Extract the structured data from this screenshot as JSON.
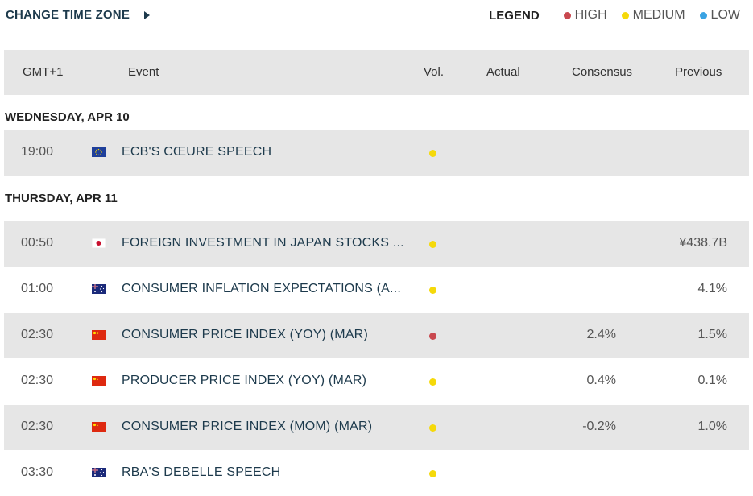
{
  "header": {
    "change_tz_label": "CHANGE TIME ZONE",
    "legend_title": "LEGEND",
    "legend": [
      {
        "label": "HIGH",
        "color": "#c9484f"
      },
      {
        "label": "MEDIUM",
        "color": "#f5d90a"
      },
      {
        "label": "LOW",
        "color": "#3aa3e3"
      }
    ]
  },
  "table": {
    "columns": [
      "GMT+1",
      "Event",
      "Vol.",
      "Actual",
      "Consensus",
      "Previous"
    ]
  },
  "days": [
    {
      "heading": "WEDNESDAY, APR 10",
      "events": [
        {
          "time": "19:00",
          "flag": "eu-flag-icon",
          "event": "ECB'S CŒURE SPEECH",
          "vol": "medium",
          "actual": "",
          "consensus": "",
          "previous": ""
        }
      ]
    },
    {
      "heading": "THURSDAY, APR 11",
      "events": [
        {
          "time": "00:50",
          "flag": "japan-flag-icon",
          "event": "FOREIGN INVESTMENT IN JAPAN STOCKS ...",
          "vol": "medium",
          "actual": "",
          "consensus": "",
          "previous": "¥438.7B"
        },
        {
          "time": "01:00",
          "flag": "australia-flag-icon",
          "event": "CONSUMER INFLATION EXPECTATIONS (A...",
          "vol": "medium",
          "actual": "",
          "consensus": "",
          "previous": "4.1%"
        },
        {
          "time": "02:30",
          "flag": "china-flag-icon",
          "event": "CONSUMER PRICE INDEX (YOY) (MAR)",
          "vol": "high",
          "actual": "",
          "consensus": "2.4%",
          "previous": "1.5%"
        },
        {
          "time": "02:30",
          "flag": "china-flag-icon",
          "event": "PRODUCER PRICE INDEX (YOY) (MAR)",
          "vol": "medium",
          "actual": "",
          "consensus": "0.4%",
          "previous": "0.1%"
        },
        {
          "time": "02:30",
          "flag": "china-flag-icon",
          "event": "CONSUMER PRICE INDEX (MOM) (MAR)",
          "vol": "medium",
          "actual": "",
          "consensus": "-0.2%",
          "previous": "1.0%"
        },
        {
          "time": "03:30",
          "flag": "australia-flag-icon",
          "event": "RBA'S DEBELLE SPEECH",
          "vol": "medium",
          "actual": "",
          "consensus": "",
          "previous": ""
        }
      ]
    }
  ]
}
